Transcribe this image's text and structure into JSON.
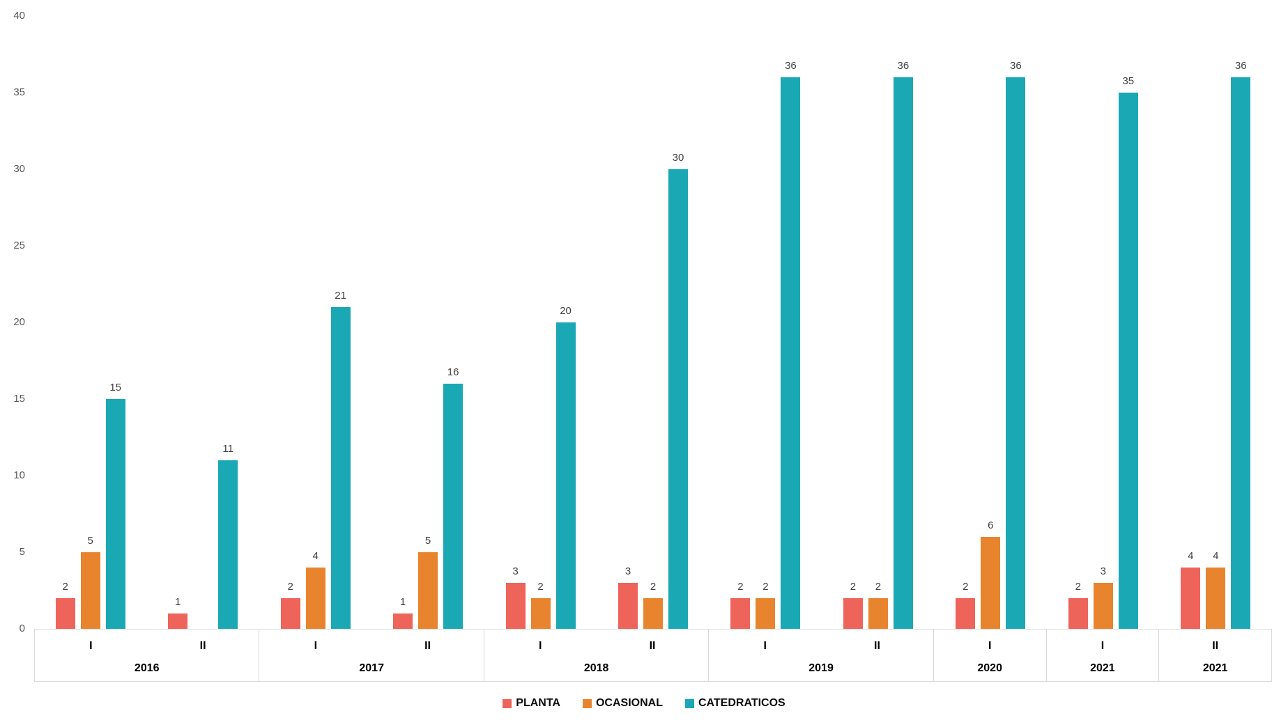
{
  "chart_data": {
    "type": "bar",
    "title": "",
    "xlabel": "",
    "ylabel": "",
    "categories": [
      "I",
      "II",
      "I",
      "II",
      "I",
      "II",
      "I",
      "II",
      "I",
      "I",
      "II"
    ],
    "year_groups": [
      {
        "label": "2016",
        "slots": 2
      },
      {
        "label": "2017",
        "slots": 2
      },
      {
        "label": "2018",
        "slots": 2
      },
      {
        "label": "2019",
        "slots": 2
      },
      {
        "label": "2020",
        "slots": 1
      },
      {
        "label": "2021",
        "slots": 1
      },
      {
        "label": "2021",
        "slots": 1
      }
    ],
    "series": [
      {
        "name": "PLANTA",
        "color": "#EE635A",
        "values": [
          2,
          1,
          2,
          1,
          3,
          3,
          2,
          2,
          2,
          2,
          4
        ]
      },
      {
        "name": "OCASIONAL",
        "color": "#E8842D",
        "values": [
          5,
          0,
          4,
          5,
          2,
          2,
          2,
          2,
          6,
          3,
          4
        ]
      },
      {
        "name": "CATEDRATICOS",
        "color": "#1AA8B4",
        "values": [
          15,
          11,
          21,
          16,
          20,
          30,
          36,
          36,
          36,
          35,
          36
        ]
      }
    ],
    "y_ticks": [
      0,
      5,
      10,
      15,
      20,
      25,
      30,
      35,
      40
    ],
    "ylim": [
      0,
      40
    ],
    "grid": false,
    "legend_position": "bottom",
    "show_data_labels": true,
    "colors": {
      "axis_line": "#d9d9d9",
      "tick_label": "#595959",
      "data_label": "#404040",
      "category_label": "#000000"
    }
  }
}
